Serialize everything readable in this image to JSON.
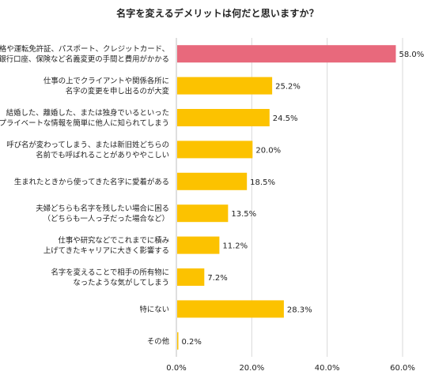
{
  "chart_data": {
    "type": "bar",
    "orientation": "horizontal",
    "title": "名字を変えるデメリットは何だと思いますか？",
    "categories": [
      [
        "資格や運転免許証、パスポート、クレジットカード、",
        "銀行口座、保険など名義変更の手間と費用がかかる"
      ],
      [
        "仕事の上でクライアントや関係各所に",
        "名字の変更を申し出るのが大変"
      ],
      [
        "結婚した、離婚した、または独身でいるといった",
        "プライベートな情報を簡単に他人に知られてしまう"
      ],
      [
        "呼び名が変わってしまう、または新旧姓どちらの",
        "名前でも呼ばれることがありややこしい"
      ],
      [
        "生まれたときから使ってきた名字に愛着がある"
      ],
      [
        "夫婦どちらも名字を残したい場合に困る",
        "（どちらも一人っ子だった場合など）"
      ],
      [
        "仕事や研究などでこれまでに積み",
        "上げてきたキャリアに大きく影響する"
      ],
      [
        "名字を変えることで相手の所有物に",
        "なったような気がしてしまう"
      ],
      [
        "特にない"
      ],
      [
        "その他"
      ]
    ],
    "values": [
      58.0,
      25.2,
      24.5,
      20.0,
      18.5,
      13.5,
      11.2,
      7.2,
      28.3,
      0.2
    ],
    "value_labels": [
      "58.0%",
      "25.2%",
      "24.5%",
      "20.0%",
      "18.5%",
      "13.5%",
      "11.2%",
      "7.2%",
      "28.3%",
      "0.2%"
    ],
    "highlight_index": 0,
    "colors": {
      "highlight": "#e8697c",
      "bar": "#fcc200",
      "grid": "#d9d9d9",
      "axis": "#bfbfbf"
    },
    "xlim": [
      0,
      60
    ],
    "xticks": [
      0,
      20,
      40,
      60
    ],
    "xtick_labels": [
      "0.0%",
      "20.0%",
      "40.0%",
      "60.0%"
    ],
    "grid": true,
    "xlabel": "",
    "ylabel": ""
  }
}
